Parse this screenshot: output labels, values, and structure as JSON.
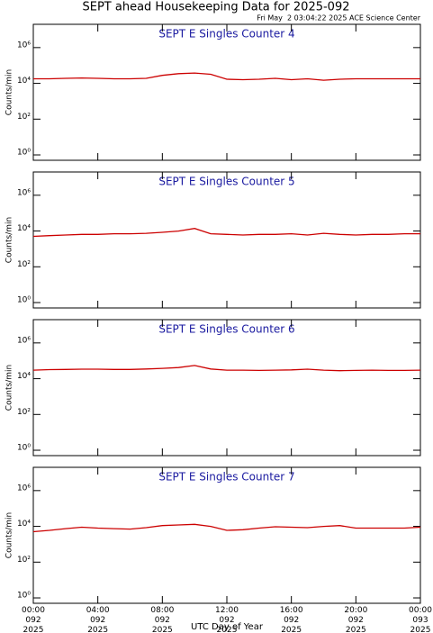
{
  "title": "SEPT ahead Housekeeping Data for 2025-092",
  "subtitle": "Fri May  2 03:04:22 2025 ACE Science Center",
  "x_label": "UTC Day of Year",
  "chart_data": [
    {
      "type": "line",
      "title": "SEPT E Singles Counter 4",
      "y_label": "Counts/min",
      "log_y": true,
      "color": "#cc0000",
      "x": [
        0,
        1,
        2,
        3,
        4,
        5,
        6,
        7,
        8,
        9,
        10,
        11,
        12,
        13,
        14,
        15,
        16,
        17,
        18,
        19,
        20,
        21,
        22,
        23,
        24
      ],
      "values": [
        18000,
        18000,
        19000,
        20000,
        19000,
        18000,
        18000,
        19000,
        28000,
        35000,
        38000,
        32000,
        17000,
        16000,
        17000,
        19000,
        16000,
        18000,
        15000,
        17000,
        18000,
        18000,
        18000,
        18000,
        18000
      ],
      "xlim": [
        0,
        24
      ],
      "xticks": [
        0,
        4,
        8,
        12,
        16,
        20,
        24
      ],
      "ylim": [
        0.5,
        20000000
      ],
      "yticks": [
        {
          "value": 1,
          "label": "10⁰"
        },
        {
          "value": 100,
          "label": "10²"
        },
        {
          "value": 10000,
          "label": "10⁴"
        },
        {
          "value": 1000000,
          "label": "10⁶"
        }
      ]
    },
    {
      "type": "line",
      "title": "SEPT E Singles Counter 5",
      "y_label": "Counts/min",
      "log_y": true,
      "color": "#cc0000",
      "x": [
        0,
        1,
        2,
        3,
        4,
        5,
        6,
        7,
        8,
        9,
        10,
        11,
        12,
        13,
        14,
        15,
        16,
        17,
        18,
        19,
        20,
        21,
        22,
        23,
        24
      ],
      "values": [
        5000,
        5500,
        6000,
        6500,
        6500,
        7000,
        7000,
        7500,
        8500,
        10000,
        14000,
        7000,
        6500,
        6000,
        6500,
        6500,
        7000,
        6000,
        7500,
        6500,
        6000,
        6500,
        6500,
        7000,
        7000
      ],
      "xlim": [
        0,
        24
      ],
      "xticks": [
        0,
        4,
        8,
        12,
        16,
        20,
        24
      ],
      "ylim": [
        0.5,
        20000000
      ],
      "yticks": [
        {
          "value": 1,
          "label": "10⁰"
        },
        {
          "value": 100,
          "label": "10²"
        },
        {
          "value": 10000,
          "label": "10⁴"
        },
        {
          "value": 1000000,
          "label": "10⁶"
        }
      ]
    },
    {
      "type": "line",
      "title": "SEPT E Singles Counter 6",
      "y_label": "Counts/min",
      "log_y": true,
      "color": "#cc0000",
      "x": [
        0,
        1,
        2,
        3,
        4,
        5,
        6,
        7,
        8,
        9,
        10,
        11,
        12,
        13,
        14,
        15,
        16,
        17,
        18,
        19,
        20,
        21,
        22,
        23,
        24
      ],
      "values": [
        30000,
        32000,
        33000,
        34000,
        34000,
        33000,
        33000,
        35000,
        38000,
        42000,
        55000,
        35000,
        30000,
        30000,
        29000,
        30000,
        31000,
        34000,
        30000,
        28000,
        29000,
        30000,
        29000,
        29000,
        30000
      ],
      "xlim": [
        0,
        24
      ],
      "xticks": [
        0,
        4,
        8,
        12,
        16,
        20,
        24
      ],
      "ylim": [
        0.5,
        20000000
      ],
      "yticks": [
        {
          "value": 1,
          "label": "10⁰"
        },
        {
          "value": 100,
          "label": "10²"
        },
        {
          "value": 10000,
          "label": "10⁴"
        },
        {
          "value": 1000000,
          "label": "10⁶"
        }
      ]
    },
    {
      "type": "line",
      "title": "SEPT E Singles Counter 7",
      "y_label": "Counts/min",
      "log_y": true,
      "color": "#cc0000",
      "x": [
        0,
        1,
        2,
        3,
        4,
        5,
        6,
        7,
        8,
        9,
        10,
        11,
        12,
        13,
        14,
        15,
        16,
        17,
        18,
        19,
        20,
        21,
        22,
        23,
        24
      ],
      "values": [
        5000,
        6000,
        7500,
        9000,
        8000,
        7500,
        7000,
        8500,
        11000,
        12000,
        13000,
        10000,
        6000,
        6500,
        8000,
        9500,
        9000,
        8500,
        10000,
        11000,
        8000,
        8000,
        8000,
        8000,
        9000
      ],
      "xlim": [
        0,
        24
      ],
      "xticks": [
        {
          "value": 0,
          "label": "00:00\n092\n2025"
        },
        {
          "value": 4,
          "label": "04:00\n092\n2025"
        },
        {
          "value": 8,
          "label": "08:00\n092\n2025"
        },
        {
          "value": 12,
          "label": "12:00\n092\n2025"
        },
        {
          "value": 16,
          "label": "16:00\n092\n2025"
        },
        {
          "value": 20,
          "label": "20:00\n092\n2025"
        },
        {
          "value": 24,
          "label": "00:00\n093\n2025"
        }
      ],
      "ylim": [
        0.5,
        20000000
      ],
      "yticks": [
        {
          "value": 1,
          "label": "10⁰"
        },
        {
          "value": 100,
          "label": "10²"
        },
        {
          "value": 10000,
          "label": "10⁴"
        },
        {
          "value": 1000000,
          "label": "10⁶"
        }
      ]
    }
  ]
}
